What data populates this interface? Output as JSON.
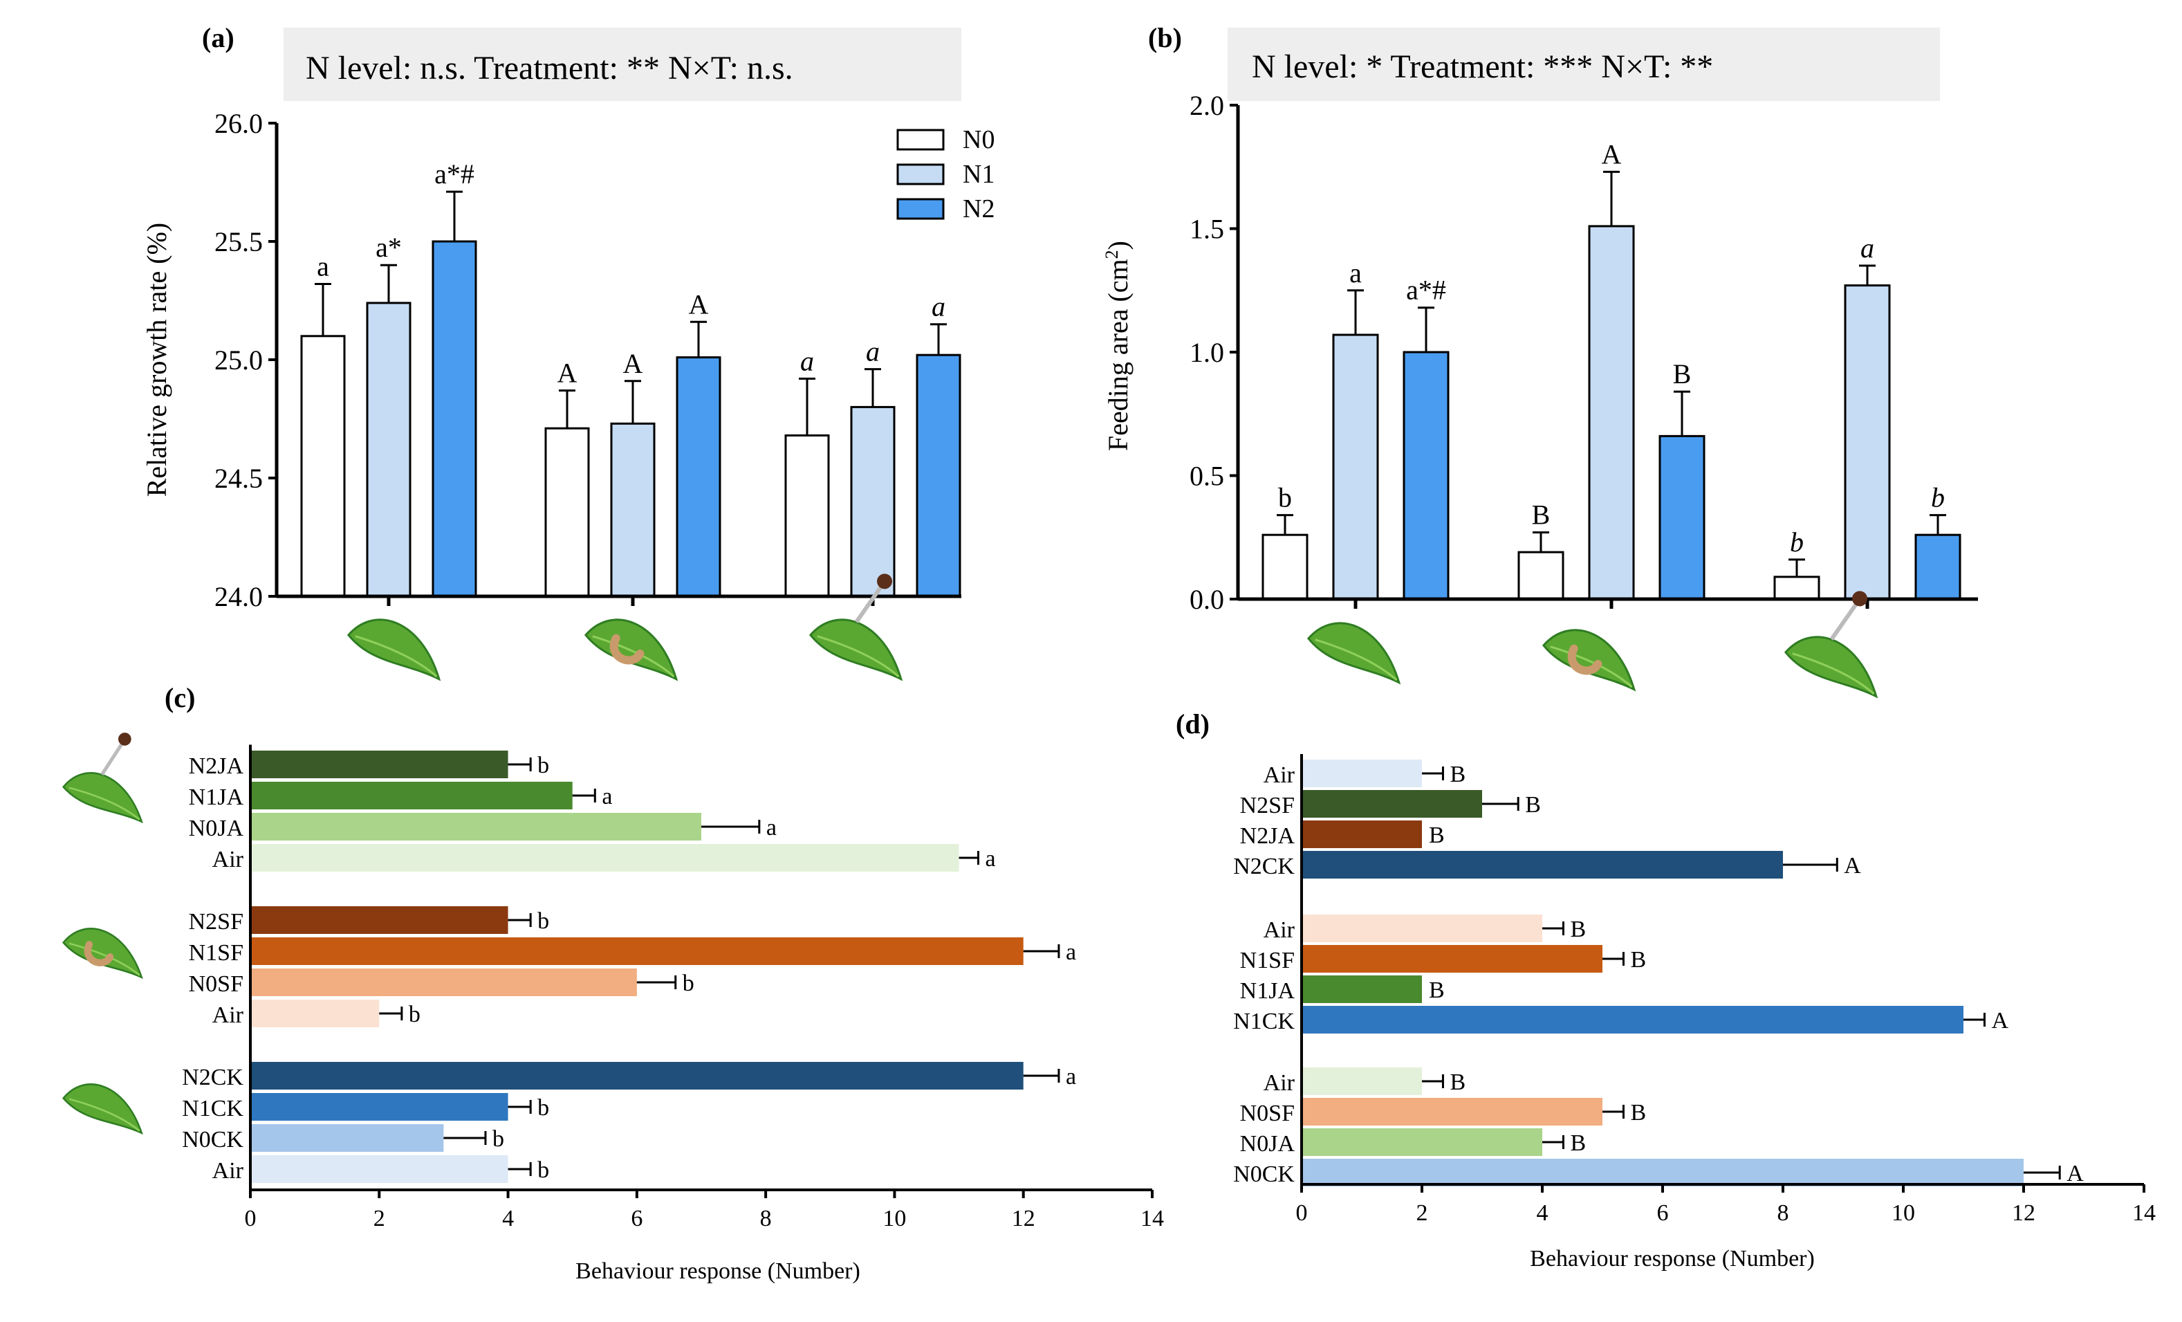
{
  "colors": {
    "N0": "#ffffff",
    "N1": "#c6dcf5",
    "N2": "#4a9cf0",
    "stats_box": "#eeeeee",
    "leaf": "#5aa832",
    "leaf_dark": "#2f7d22",
    "leaf_light": "#8fd05a",
    "caterpillar": "#c99a6b",
    "dropper": "#5b2e1a"
  },
  "chart_data": [
    {
      "panel": "(a)",
      "type": "bar",
      "stats": "N level: n.s. Treatment: ** N×T: n.s.",
      "ylabel": "Relative growth rate (%)",
      "xlabel": "",
      "ylim": [
        24.0,
        26.0
      ],
      "yticks": [
        "24.0",
        "24.5",
        "25.0",
        "25.5",
        "26.0"
      ],
      "ytick_values": [
        24.0,
        24.5,
        25.0,
        25.5,
        26.0
      ],
      "legend_position": "top-right",
      "categories": [
        "leaf-icon",
        "caterpillar-leaf-icon",
        "dropper-leaf-icon"
      ],
      "series": [
        {
          "name": "N0",
          "values": [
            25.1,
            24.71,
            24.68
          ],
          "errors": [
            0.22,
            0.16,
            0.24
          ],
          "labels": [
            "a",
            "A",
            "a"
          ],
          "italic": [
            false,
            false,
            true
          ]
        },
        {
          "name": "N1",
          "values": [
            25.24,
            24.73,
            24.8
          ],
          "errors": [
            0.16,
            0.18,
            0.16
          ],
          "labels": [
            "a*",
            "A",
            "a"
          ],
          "italic": [
            false,
            false,
            true
          ]
        },
        {
          "name": "N2",
          "values": [
            25.5,
            25.01,
            25.02
          ],
          "errors": [
            0.21,
            0.15,
            0.13
          ],
          "labels": [
            "a*#",
            "A",
            "a"
          ],
          "italic": [
            false,
            false,
            true
          ]
        }
      ]
    },
    {
      "panel": "(b)",
      "type": "bar",
      "stats": "N level: * Treatment: *** N×T: **",
      "ylabel": "Feeding area (cm²)",
      "xlabel": "",
      "ylim": [
        0.0,
        2.0
      ],
      "yticks": [
        "0.0",
        "0.5",
        "1.0",
        "1.5",
        "2.0"
      ],
      "ytick_values": [
        0.0,
        0.5,
        1.0,
        1.5,
        2.0
      ],
      "categories": [
        "leaf-icon",
        "caterpillar-leaf-icon",
        "dropper-leaf-icon"
      ],
      "series": [
        {
          "name": "N0",
          "values": [
            0.26,
            0.19,
            0.09
          ],
          "errors": [
            0.08,
            0.08,
            0.07
          ],
          "labels": [
            "b",
            "B",
            "b"
          ],
          "italic": [
            false,
            false,
            true
          ]
        },
        {
          "name": "N1",
          "values": [
            1.07,
            1.51,
            1.27
          ],
          "errors": [
            0.18,
            0.22,
            0.08
          ],
          "labels": [
            "a",
            "A",
            "a"
          ],
          "italic": [
            false,
            false,
            true
          ]
        },
        {
          "name": "N2",
          "values": [
            1.0,
            0.66,
            0.26
          ],
          "errors": [
            0.18,
            0.18,
            0.08
          ],
          "labels": [
            "a*#",
            "B",
            "b"
          ],
          "italic": [
            false,
            false,
            true
          ]
        }
      ]
    },
    {
      "panel": "(c)",
      "type": "bar",
      "orientation": "horizontal",
      "xlabel": "Behaviour response (Number)",
      "ylabel": "",
      "xlim": [
        0,
        14
      ],
      "xticks": [
        "0",
        "2",
        "4",
        "6",
        "8",
        "10",
        "12",
        "14"
      ],
      "xtick_values": [
        0,
        2,
        4,
        6,
        8,
        10,
        12,
        14
      ],
      "groups": [
        {
          "icon": "dropper-leaf-icon",
          "bars": [
            {
              "label": "N2JA",
              "value": 4,
              "error": 0.35,
              "letter": "b",
              "color": "#3a5a28"
            },
            {
              "label": "N1JA",
              "value": 5,
              "error": 0.35,
              "letter": "a",
              "color": "#4a8a2e"
            },
            {
              "label": "N0JA",
              "value": 7,
              "error": 0.9,
              "letter": "a",
              "color": "#a9d48a"
            },
            {
              "label": "Air",
              "value": 11,
              "error": 0.3,
              "letter": "a",
              "color": "#e3f1da"
            }
          ]
        },
        {
          "icon": "caterpillar-leaf-icon",
          "bars": [
            {
              "label": "N2SF",
              "value": 4,
              "error": 0.35,
              "letter": "b",
              "color": "#8b3a0f"
            },
            {
              "label": "N1SF",
              "value": 12,
              "error": 0.55,
              "letter": "a",
              "color": "#c75a12"
            },
            {
              "label": "N0SF",
              "value": 6,
              "error": 0.6,
              "letter": "b",
              "color": "#f2ad80"
            },
            {
              "label": "Air",
              "value": 2,
              "error": 0.35,
              "letter": "b",
              "color": "#fbe1d2"
            }
          ]
        },
        {
          "icon": "leaf-icon",
          "bars": [
            {
              "label": "N2CK",
              "value": 12,
              "error": 0.55,
              "letter": "a",
              "color": "#1f4f7a"
            },
            {
              "label": "N1CK",
              "value": 4,
              "error": 0.35,
              "letter": "b",
              "color": "#2f78bf"
            },
            {
              "label": "N0CK",
              "value": 3,
              "error": 0.65,
              "letter": "b",
              "color": "#a4c6ea"
            },
            {
              "label": "Air",
              "value": 4,
              "error": 0.35,
              "letter": "b",
              "color": "#dde9f6"
            }
          ]
        }
      ]
    },
    {
      "panel": "(d)",
      "type": "bar",
      "orientation": "horizontal",
      "xlabel": "Behaviour response (Number)",
      "ylabel": "",
      "xlim": [
        0,
        14
      ],
      "xticks": [
        "0",
        "2",
        "4",
        "6",
        "8",
        "10",
        "12",
        "14"
      ],
      "xtick_values": [
        0,
        2,
        4,
        6,
        8,
        10,
        12,
        14
      ],
      "groups": [
        {
          "bars": [
            {
              "label": "Air",
              "value": 2,
              "error": 0.35,
              "letter": "B",
              "color": "#dde9f6"
            },
            {
              "label": "N2SF",
              "value": 3,
              "error": 0.6,
              "letter": "B",
              "color": "#3a5a28"
            },
            {
              "label": "N2JA",
              "value": 2,
              "error": 0.0,
              "letter": "B",
              "color": "#8b3a0f"
            },
            {
              "label": "N2CK",
              "value": 8,
              "error": 0.9,
              "letter": "A",
              "color": "#1f4f7a"
            }
          ]
        },
        {
          "bars": [
            {
              "label": "Air",
              "value": 4,
              "error": 0.35,
              "letter": "B",
              "color": "#fbe1d2"
            },
            {
              "label": "N1SF",
              "value": 5,
              "error": 0.35,
              "letter": "B",
              "color": "#c75a12"
            },
            {
              "label": "N1JA",
              "value": 2,
              "error": 0.0,
              "letter": "B",
              "color": "#4a8a2e"
            },
            {
              "label": "N1CK",
              "value": 11,
              "error": 0.35,
              "letter": "A",
              "color": "#2f78bf"
            }
          ]
        },
        {
          "bars": [
            {
              "label": "Air",
              "value": 2,
              "error": 0.35,
              "letter": "B",
              "color": "#e3f1da"
            },
            {
              "label": "N0SF",
              "value": 5,
              "error": 0.35,
              "letter": "B",
              "color": "#f2ad80"
            },
            {
              "label": "N0JA",
              "value": 4,
              "error": 0.35,
              "letter": "B",
              "color": "#a9d48a"
            },
            {
              "label": "N0CK",
              "value": 12,
              "error": 0.6,
              "letter": "A",
              "color": "#a4c6ea"
            }
          ]
        }
      ]
    }
  ]
}
